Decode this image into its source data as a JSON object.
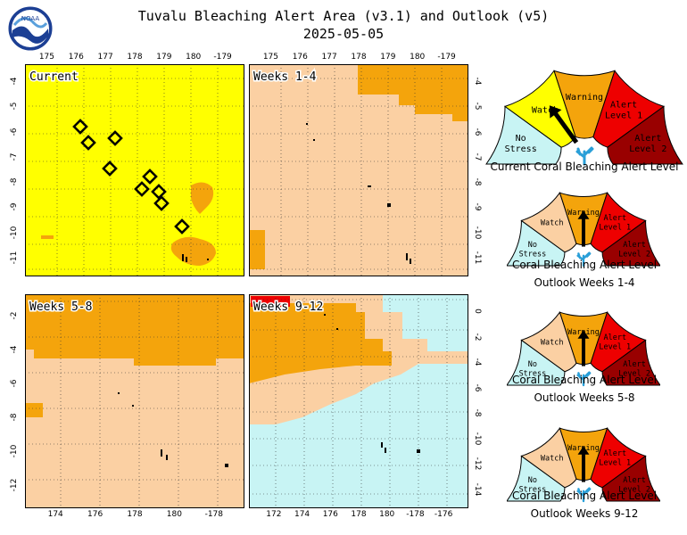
{
  "title_line1": "Tuvalu Bleaching Alert Area (v3.1) and Outlook (v5)",
  "title_line2": "2025-05-05",
  "logo_text": "NOAA",
  "colors": {
    "no_stress": "#c8f4f4",
    "watch": "#ffff00",
    "warning": "#f4a40c",
    "alert1": "#ee0000",
    "alert2": "#990000",
    "outlook_watch": "#fbd0a3",
    "hotspot_orange": "#f4a40c"
  },
  "maps": [
    {
      "label": "Current",
      "top_ticks": [
        "175",
        "176",
        "177",
        "178",
        "179",
        "180",
        "-179"
      ],
      "right_ticks": [],
      "left_ticks": [
        "-4",
        "-5",
        "-6",
        "-7",
        "-8",
        "-9",
        "-10",
        "-11"
      ],
      "bottom_ticks": []
    },
    {
      "label": "Weeks 1-4",
      "top_ticks": [
        "175",
        "176",
        "177",
        "178",
        "179",
        "180",
        "-179"
      ],
      "right_ticks": [
        "-4",
        "-5",
        "-6",
        "-7",
        "-8",
        "-9",
        "-10",
        "-11"
      ],
      "left_ticks": [],
      "bottom_ticks": []
    },
    {
      "label": "Weeks 5-8",
      "top_ticks": [],
      "right_ticks": [],
      "left_ticks": [
        "-2",
        "-4",
        "-6",
        "-8",
        "-10",
        "-12"
      ],
      "bottom_ticks": [
        "174",
        "176",
        "178",
        "180",
        "-178"
      ]
    },
    {
      "label": "Weeks 9-12",
      "top_ticks": [],
      "right_ticks": [
        "0",
        "-2",
        "-4",
        "-6",
        "-8",
        "-10",
        "-12",
        "-14"
      ],
      "left_ticks": [],
      "bottom_ticks": [
        "172",
        "174",
        "176",
        "178",
        "180",
        "-178",
        "-176"
      ]
    }
  ],
  "gauge_labels": {
    "no_stress": [
      "No",
      "Stress"
    ],
    "watch": "Watch",
    "warning": "Warning",
    "alert1": [
      "Alert",
      "Level 1"
    ],
    "alert2": [
      "Alert",
      "Level 2"
    ]
  },
  "gauges": [
    {
      "caption1": "Current Coral Bleaching Alert Level",
      "caption2": "",
      "level": "watch"
    },
    {
      "caption1": "Coral Bleaching Alert Level",
      "caption2": "Outlook Weeks 1-4",
      "level": "warning"
    },
    {
      "caption1": "Coral Bleaching Alert Level",
      "caption2": "Outlook Weeks 5-8",
      "level": "warning"
    },
    {
      "caption1": "Coral Bleaching Alert Level",
      "caption2": "Outlook Weeks 9-12",
      "level": "warning"
    }
  ]
}
